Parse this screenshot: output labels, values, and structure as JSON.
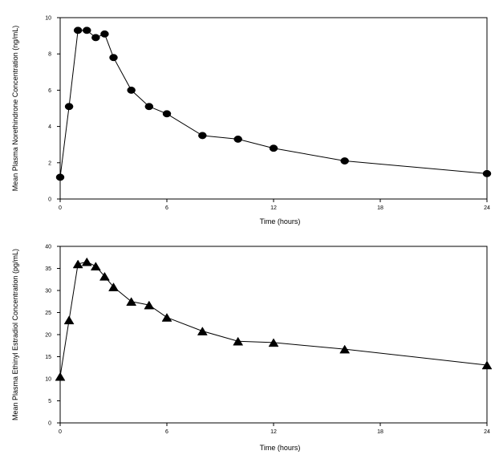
{
  "chart_data": [
    {
      "type": "line",
      "marker": "diamond",
      "title": "",
      "xlabel": "Time (hours)",
      "ylabel": "Mean Plasma Norethindrone Concentration (ng/mL)",
      "xlim": [
        0,
        24
      ],
      "ylim": [
        0,
        10
      ],
      "x_ticks": [
        0,
        6,
        12,
        18,
        24
      ],
      "y_ticks": [
        0,
        2,
        4,
        6,
        8,
        10
      ],
      "grid": false,
      "series": [
        {
          "x": [
            0,
            0.5,
            1,
            1.5,
            2,
            2.5,
            3,
            4,
            5,
            6,
            8,
            10,
            12,
            16,
            24
          ],
          "values": [
            1.2,
            5.1,
            9.3,
            9.3,
            8.9,
            9.1,
            7.8,
            6.0,
            5.1,
            4.7,
            3.5,
            3.3,
            2.8,
            2.1,
            1.4
          ]
        }
      ]
    },
    {
      "type": "line",
      "marker": "triangle",
      "title": "",
      "xlabel": "Time (hours)",
      "ylabel": "Mean Plasma Ethinyl Estradiol Concentration (pg/mL)",
      "xlim": [
        0,
        24
      ],
      "ylim": [
        0,
        40
      ],
      "x_ticks": [
        0,
        6,
        12,
        18,
        24
      ],
      "y_ticks": [
        0,
        5,
        10,
        15,
        20,
        25,
        30,
        35,
        40
      ],
      "grid": false,
      "series": [
        {
          "x": [
            0,
            0.5,
            1,
            1.5,
            2,
            2.5,
            3,
            4,
            5,
            6,
            8,
            10,
            12,
            16,
            24
          ],
          "values": [
            10.5,
            23.3,
            36.0,
            36.5,
            35.5,
            33.2,
            30.8,
            27.5,
            26.7,
            23.9,
            20.8,
            18.5,
            18.2,
            16.7,
            13.1
          ]
        }
      ]
    }
  ]
}
